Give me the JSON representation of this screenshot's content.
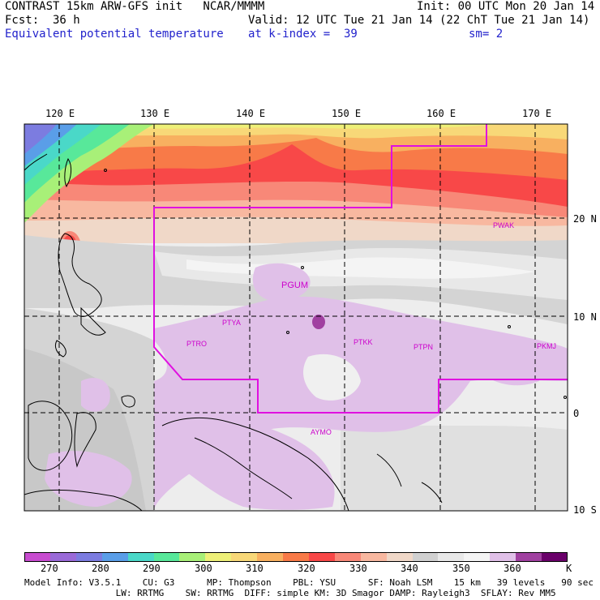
{
  "header": {
    "line1_left": "CONTRAST 15km ARW-GFS init   NCAR/MMMM",
    "line1_right": "Init: 00 UTC Mon 20 Jan 14",
    "fcst": "Fcst:  36 h",
    "valid": "Valid: 12 UTC Tue 21 Jan 14 (22 ChT Tue 21 Jan 14)",
    "field": "Equivalent potential temperature",
    "level": "at k-index =  39",
    "smoothing": "sm= 2"
  },
  "map": {
    "lon_labels": [
      "120 E",
      "130 E",
      "140 E",
      "150 E",
      "160 E",
      "170 E"
    ],
    "lat_labels": [
      "20 N",
      "10 N",
      "0",
      "10 S"
    ],
    "stations": [
      "PWAK",
      "PGUM",
      "PTYA",
      "PTRO",
      "PTKK",
      "PTPN",
      "PKMJ",
      "AYMO"
    ],
    "boundary_color": "#e010e0",
    "station_color": "#cc00cc"
  },
  "colorbar": {
    "labels": [
      "270",
      "280",
      "290",
      "300",
      "310",
      "320",
      "330",
      "340",
      "350",
      "360"
    ],
    "unit": "K",
    "colors": [
      "#c84cd0",
      "#9a6ad8",
      "#7c7ce0",
      "#5a9ee8",
      "#4ad8c8",
      "#58e89a",
      "#a8f078",
      "#eef078",
      "#f8d878",
      "#f8b060",
      "#f87a48",
      "#f84848",
      "#f88878",
      "#f8b8a0",
      "#f0d8c8",
      "#d0d0d0",
      "#e8e8e8",
      "#f4f4f4",
      "#e0c0e8",
      "#a040a0",
      "#6a006a"
    ]
  },
  "footer": {
    "line1": "Model Info: V3.5.1    CU: G3      MP: Thompson    PBL: YSU      SF: Noah LSM    15 km   39 levels   90 sec",
    "line2": "                 LW: RRTMG    SW: RRTMG  DIFF: simple KM: 3D Smagor DAMP: Rayleigh3  SFLAY: Rev MM5"
  }
}
